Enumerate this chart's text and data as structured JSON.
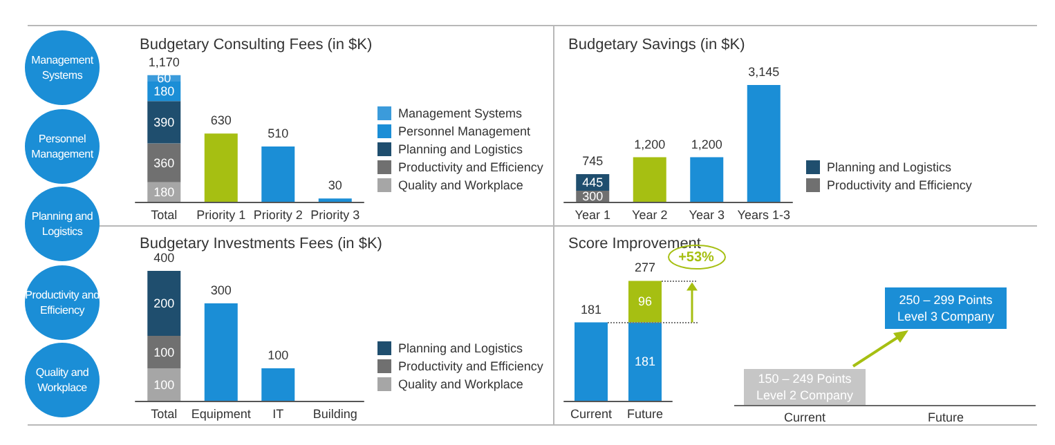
{
  "chart_data": [
    {
      "type": "other",
      "annotations": [
        "Management Systems",
        "Personnel Management",
        "Planning and Logistics",
        "Productivity and Efficiency",
        "Quality and Workplace"
      ]
    },
    {
      "type": "bar",
      "title": "Budgetary Consulting Fees (in $K)",
      "categories": [
        "Total",
        "Priority 1",
        "Priority 2",
        "Priority 3"
      ],
      "stacked": true,
      "data_labels": true,
      "legend": "right",
      "totals": [
        "1,170",
        null,
        null,
        null
      ],
      "series": [
        {
          "name": "Quality and Workplace",
          "color": "#a6a6a6",
          "values": [
            180,
            null,
            null,
            null
          ]
        },
        {
          "name": "Productivity and Efficiency",
          "color": "#707070",
          "values": [
            360,
            null,
            null,
            null
          ]
        },
        {
          "name": "Planning and Logistics",
          "color": "#1f4e6e",
          "values": [
            390,
            null,
            null,
            null
          ]
        },
        {
          "name": "Personnel Management",
          "color": "#1b8ed6",
          "values": [
            180,
            null,
            null,
            null
          ]
        },
        {
          "name": "Management Systems",
          "color": "#3b9bdb",
          "values": [
            60,
            null,
            null,
            null
          ]
        },
        {
          "colors": [
            null,
            "#a6bf12",
            "#1b8ed6",
            "#1b8ed6"
          ],
          "values": [
            null,
            630,
            510,
            30
          ]
        }
      ]
    },
    {
      "type": "bar",
      "title": "Budgetary Savings (in $K)",
      "categories": [
        "Year 1",
        "Year 2",
        "Year 3",
        "Years 1-3"
      ],
      "stacked": true,
      "data_labels": true,
      "legend": "right",
      "totals": [
        "745",
        null,
        null,
        null
      ],
      "series": [
        {
          "name": "Productivity and Efficiency",
          "color": "#707070",
          "values": [
            300,
            null,
            null,
            null
          ]
        },
        {
          "name": "Planning and Logistics",
          "color": "#1f4e6e",
          "values": [
            445,
            null,
            null,
            null
          ]
        },
        {
          "colors": [
            null,
            "#a6bf12",
            "#1b8ed6",
            "#1b8ed6"
          ],
          "values": [
            null,
            1200,
            1200,
            3145
          ],
          "value_labels": [
            null,
            "1,200",
            "1,200",
            "3,145"
          ]
        }
      ]
    },
    {
      "type": "bar",
      "title": "Budgetary Investments Fees (in $K)",
      "categories": [
        "Total",
        "Equipment",
        "IT",
        "Building"
      ],
      "stacked": true,
      "data_labels": true,
      "legend": "right",
      "totals": [
        "400",
        null,
        null,
        null
      ],
      "series": [
        {
          "name": "Quality and Workplace",
          "color": "#a6a6a6",
          "values": [
            100,
            null,
            null,
            null
          ]
        },
        {
          "name": "Productivity and Efficiency",
          "color": "#707070",
          "values": [
            100,
            null,
            null,
            null
          ]
        },
        {
          "name": "Planning and Logistics",
          "color": "#1f4e6e",
          "values": [
            200,
            null,
            null,
            null
          ]
        },
        {
          "colors": [
            null,
            "#1b8ed6",
            "#1b8ed6",
            null
          ],
          "values": [
            null,
            300,
            100,
            null
          ]
        }
      ]
    },
    {
      "type": "bar",
      "title": "Score Improvement",
      "categories": [
        "Current",
        "Future"
      ],
      "stacked": true,
      "data_labels": true,
      "totals": [
        null,
        "277"
      ],
      "annotations": [
        "+53%"
      ],
      "ref_lines": [
        {
          "axis": "y",
          "value": 181,
          "line_style": "dotted",
          "color": "#777777"
        },
        {
          "axis": "y",
          "value": 277,
          "line_style": "dotted",
          "color": "#777777"
        }
      ],
      "series": [
        {
          "color": "#1b8ed6",
          "values": [
            181,
            181
          ]
        },
        {
          "color": "#a6bf12",
          "values": [
            null,
            96
          ]
        }
      ]
    },
    {
      "type": "other",
      "categories": [
        "Current",
        "Future"
      ],
      "annotations": [
        "150 – 249 Points\nLevel 2 Company",
        "250 – 299 Points\nLevel 3 Company"
      ]
    }
  ]
}
